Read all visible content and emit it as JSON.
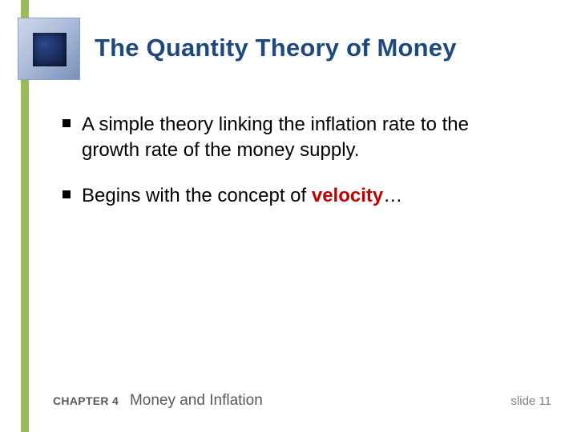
{
  "title": "The Quantity Theory of Money",
  "title_color": "#1f497d",
  "title_fontsize": 31,
  "accent_bar_color": "#9bbb59",
  "bullets": [
    {
      "text_before": "A simple theory linking the inflation rate to the growth rate of the money supply.",
      "highlight": "",
      "text_after": ""
    },
    {
      "text_before": "Begins with the concept of ",
      "highlight": "velocity",
      "text_after": "…"
    }
  ],
  "bullet_fontsize": 24,
  "bullet_color": "#000000",
  "highlight_color": "#c00000",
  "footer": {
    "chapter": "CHAPTER 4",
    "title": "Money and Inflation",
    "chapter_fontsize": 14,
    "title_fontsize": 19,
    "color": "#595959"
  },
  "slide_label": "slide 11",
  "slide_label_color": "#7f7f7f",
  "background_color": "#ffffff"
}
